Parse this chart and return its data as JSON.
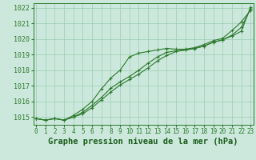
{
  "title": "Graphe pression niveau de la mer (hPa)",
  "xlabel_hours": [
    0,
    1,
    2,
    3,
    4,
    5,
    6,
    7,
    8,
    9,
    10,
    11,
    12,
    13,
    14,
    15,
    16,
    17,
    18,
    19,
    20,
    21,
    22,
    23
  ],
  "line_top": [
    1014.9,
    1014.8,
    1014.9,
    1014.8,
    1015.1,
    1015.5,
    1016.0,
    1016.8,
    1017.5,
    1018.0,
    1018.85,
    1019.1,
    1019.2,
    1019.3,
    1019.4,
    1019.35,
    1019.35,
    1019.45,
    1019.65,
    1019.9,
    1020.05,
    1020.55,
    1021.1,
    1021.85
  ],
  "line_mid": [
    1014.9,
    1014.8,
    1014.9,
    1014.8,
    1015.0,
    1015.3,
    1015.75,
    1016.25,
    1016.85,
    1017.25,
    1017.6,
    1018.0,
    1018.45,
    1018.85,
    1019.15,
    1019.25,
    1019.3,
    1019.4,
    1019.55,
    1019.8,
    1019.95,
    1020.25,
    1020.75,
    1021.95
  ],
  "line_bot": [
    1014.9,
    1014.8,
    1014.9,
    1014.8,
    1015.0,
    1015.2,
    1015.6,
    1016.1,
    1016.6,
    1017.05,
    1017.4,
    1017.75,
    1018.15,
    1018.6,
    1018.95,
    1019.2,
    1019.3,
    1019.4,
    1019.55,
    1019.8,
    1019.95,
    1020.2,
    1020.5,
    1022.05
  ],
  "ylim_min": 1014.5,
  "ylim_max": 1022.3,
  "yticks": [
    1015,
    1016,
    1017,
    1018,
    1019,
    1020,
    1021,
    1022
  ],
  "line_color": "#2d7a2d",
  "bg_color": "#cce8dc",
  "grid_color": "#99ccb3",
  "title_color": "#1a5c1a",
  "title_fontsize": 7.5,
  "tick_fontsize": 6.0,
  "figwidth": 3.2,
  "figheight": 2.0,
  "dpi": 100
}
